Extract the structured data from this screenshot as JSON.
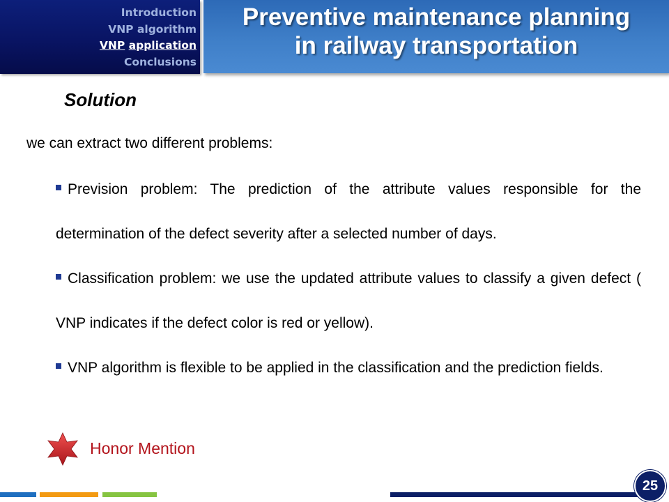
{
  "nav": {
    "items": [
      {
        "label": "Introduction",
        "active": false
      },
      {
        "label": "VNP algorithm",
        "active": false
      },
      {
        "label_part1": "VNP",
        "label_part2": "application",
        "active": true
      },
      {
        "label": "Conclusions",
        "active": false
      }
    ]
  },
  "title": {
    "line1": "Preventive maintenance planning",
    "line2": "in railway transportation"
  },
  "content": {
    "heading": "Solution",
    "intro": "we can extract two different problems:",
    "bullets": [
      "Prevision problem: The prediction of the attribute values responsible for the determination of the defect severity after a selected number of days.",
      "Classification problem: we use the updated attribute values to classify a given defect ( VNP indicates if the defect color is red or yellow).",
      "VNP algorithm is flexible to be applied in the classification and the prediction fields."
    ],
    "honor_mention": "Honor Mention"
  },
  "footer": {
    "page_number": "25"
  },
  "colors": {
    "nav_bg": "#091463",
    "banner_bg": "#3f7fc8",
    "bullet_marker": "#1f3a93",
    "honor_text": "#b3141c",
    "star": "#d8262c"
  },
  "icons": {
    "bullet": "square-bullet-icon",
    "honor": "star-icon"
  }
}
